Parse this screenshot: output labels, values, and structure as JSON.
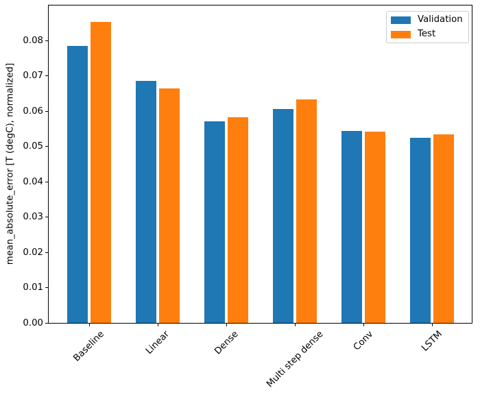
{
  "chart_data": {
    "type": "bar",
    "title": "",
    "xlabel": "",
    "ylabel": "mean_absolute_error [T (degC), normalized]",
    "categories": [
      "Baseline",
      "Linear",
      "Dense",
      "Multi step dense",
      "Conv",
      "LSTM"
    ],
    "series": [
      {
        "name": "Validation",
        "color": "#1f77b4",
        "values": [
          0.0785,
          0.0687,
          0.0571,
          0.0606,
          0.0545,
          0.0524
        ]
      },
      {
        "name": "Test",
        "color": "#ff7f0e",
        "values": [
          0.0853,
          0.0664,
          0.0583,
          0.0634,
          0.0543,
          0.0534
        ]
      }
    ],
    "ylim": [
      0.0,
      0.09
    ],
    "yticks": [
      0.0,
      0.01,
      0.02,
      0.03,
      0.04,
      0.05,
      0.06,
      0.07,
      0.08
    ],
    "ytick_labels": [
      "0.00",
      "0.01",
      "0.02",
      "0.03",
      "0.04",
      "0.05",
      "0.06",
      "0.07",
      "0.08"
    ],
    "xtick_rotation": 45,
    "grid": false,
    "legend_position": "upper right",
    "background_color": "#ffffff",
    "spine_color": "#000000"
  }
}
